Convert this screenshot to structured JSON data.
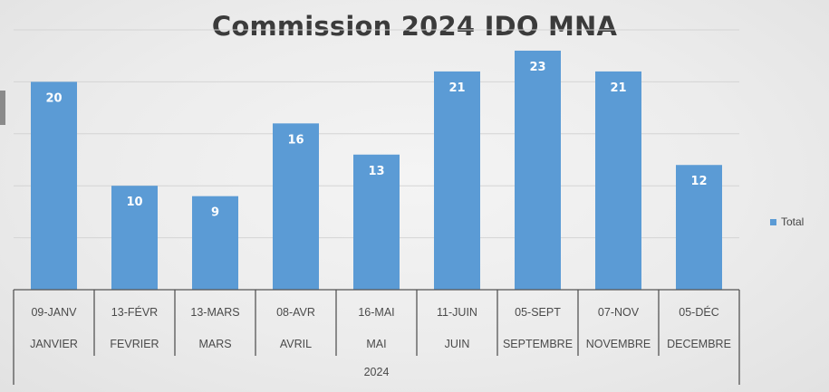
{
  "chart_data": {
    "type": "bar",
    "title": "Commission 2024 IDO MNA",
    "categories": [
      {
        "date": "09-JANV",
        "month": "JANVIER"
      },
      {
        "date": "13-FÉVR",
        "month": "FEVRIER"
      },
      {
        "date": "13-MARS",
        "month": "MARS"
      },
      {
        "date": "08-AVR",
        "month": "AVRIL"
      },
      {
        "date": "16-MAI",
        "month": "MAI"
      },
      {
        "date": "11-JUIN",
        "month": "JUIN"
      },
      {
        "date": "05-SEPT",
        "month": "SEPTEMBRE"
      },
      {
        "date": "07-NOV",
        "month": "NOVEMBRE"
      },
      {
        "date": "05-DÉC",
        "month": "DECEMBRE"
      }
    ],
    "year_label": "2024",
    "series": [
      {
        "name": "Total",
        "values": [
          20,
          10,
          9,
          16,
          13,
          21,
          23,
          21,
          12
        ],
        "color": "#5b9bd5"
      }
    ],
    "ylim": [
      0,
      25
    ],
    "grid": true,
    "legend": "right",
    "data_labels": true
  }
}
